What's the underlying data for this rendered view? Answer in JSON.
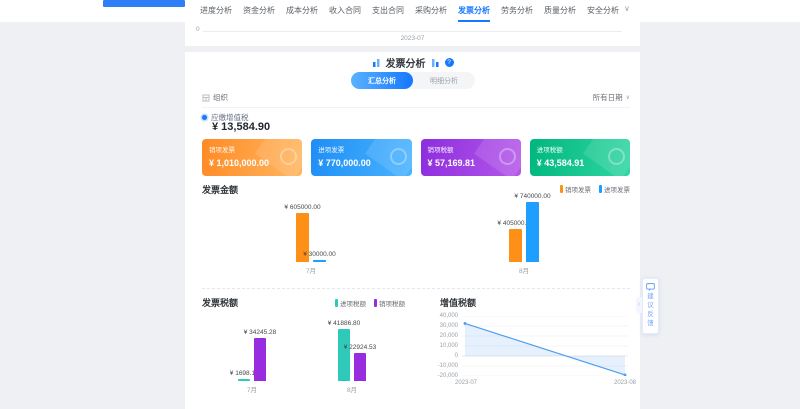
{
  "page": {
    "accent": "#1677ff",
    "background": "#eef0f4"
  },
  "nav": {
    "tabs": [
      "进度分析",
      "资金分析",
      "成本分析",
      "收入合同",
      "支出合同",
      "采购分析",
      "发票分析",
      "劳务分析",
      "质量分析",
      "安全分析"
    ],
    "active_tab": "发票分析",
    "collapse_char": "∨"
  },
  "previous_chart": {
    "y_tick": "0",
    "x_tick": "2023-07"
  },
  "invoice_section": {
    "title": "发票分析",
    "help_char": "?",
    "view_tabs": {
      "summary": "汇总分析",
      "detail": "明细分析",
      "active": "汇总分析"
    },
    "org_filter": "组织",
    "date_filter": "所有日期"
  },
  "vat_summary": {
    "label": "应缴增值税",
    "value": "¥ 13,584.90"
  },
  "kpi_cards": [
    {
      "label": "销项发票",
      "value": "¥ 1,010,000.00",
      "from": "#ff8a25",
      "to": "#ffb761"
    },
    {
      "label": "进项发票",
      "value": "¥ 770,000.00",
      "from": "#1f8ef5",
      "to": "#49b4ff"
    },
    {
      "label": "销项税额",
      "value": "¥ 57,169.81",
      "from": "#8d2ede",
      "to": "#b557ea"
    },
    {
      "label": "进项税额",
      "value": "¥ 43,584.91",
      "from": "#00b77d",
      "to": "#31d6a2"
    }
  ],
  "chart_data": [
    {
      "type": "bar",
      "title": "发票金额",
      "categories": [
        "7月",
        "8月"
      ],
      "series": [
        {
          "name": "销项发票",
          "color": "#ff9017",
          "values": [
            605000.0,
            405000.0
          ],
          "labels": [
            "¥ 605000.00",
            "¥ 405000.00"
          ]
        },
        {
          "name": "进项发票",
          "color": "#1e9fff",
          "values": [
            30000.0,
            740000.0
          ],
          "labels": [
            "¥ 30000.00",
            "¥ 740000.00"
          ]
        }
      ],
      "legend_position": "top-right",
      "grid": false
    },
    {
      "type": "bar",
      "title": "发票税额",
      "categories": [
        "7月",
        "8月"
      ],
      "series": [
        {
          "name": "进项税额",
          "color": "#2fc9b9",
          "values": [
            1698.11,
            41886.8
          ],
          "labels": [
            "¥ 1698.11",
            "¥ 41886.80"
          ]
        },
        {
          "name": "销项税额",
          "color": "#982de0",
          "values": [
            34245.28,
            22924.53
          ],
          "labels": [
            "¥ 34245.28",
            "¥ 22924.53"
          ]
        }
      ],
      "legend_position": "top-right",
      "grid": false
    },
    {
      "type": "line",
      "title": "增值税额",
      "x": [
        "2023-07",
        "2023-08"
      ],
      "values": [
        32547.17,
        -18962.27
      ],
      "y_tick_labels": [
        "40,000",
        "30,000",
        "20,000",
        "10,000",
        "0",
        "-10,000",
        "-20,000"
      ],
      "ylim": [
        -20000,
        40000
      ],
      "color": "#4f9ef1",
      "area": true,
      "grid": true
    }
  ],
  "feedback_widget": {
    "label": "建议反馈",
    "icon": "chat-bubble",
    "handle_char": "‹"
  }
}
